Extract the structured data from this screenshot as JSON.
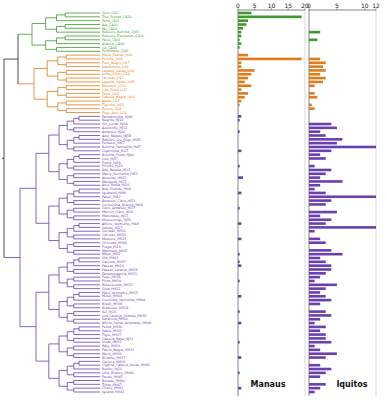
{
  "chart_data": [
    {
      "type": "bar",
      "orientation": "horizontal",
      "title": "Manaus",
      "grid": false,
      "categories": [
        "Djon_CJ01",
        "Tres_Pontas_CA10",
        "Pena_CJ02",
        "Ala_CA03",
        "Mo_CA02",
        "Besouro_Bolinha_CJ05",
        "Besouro_Escondido_CJ04",
        "Pavio_CJ03",
        "Alianca_CA09",
        "Ca_CA05",
        "Pontilhado_CJ06",
        "Mede_Pedras_LI06",
        "Pulinho_LI08",
        "Fuzil_Negro_LI07",
        "Sabiazinho_LI09",
        "Lagarto_Verde_LI10",
        "Linho_Preto_LI14",
        "Lacrado_LI11",
        "Lagarta_Verde_LI05",
        "Meteiner_LI13",
        "Lisa_Preta_LI12",
        "Ferro_LI01",
        "Cabeca_Negra_LI04",
        "Apaia_LI15",
        "Tigrinho_LI02",
        "Escuro_LI03",
        "Fogo_Azul_LI16",
        "Fantasminha_HJ09",
        "Negrito_HJ16",
        "Siri_Lunar_HJ08",
        "Azulzinho_HJ11",
        "Amarelo_HJ06",
        "Azul_Rajado_HJ58",
        "Rabinho_De_Fogo_HI85",
        "Ponteiro_HI67",
        "Bolinha_Vermelha_HI47",
        "Cigarrinha_HI07",
        "Bolinha_Preta_HJ40",
        "Lixo_HJ17",
        "Puma_HI19",
        "Pirulito_HJ21",
        "Asa_Rajada_HI15",
        "Marry_Vermelha_HI52",
        "Atrevido_HH22",
        "Maripoza_HI25",
        "Azul_Ponta_HI26",
        "Asa_Grande_HI69",
        "Iguatemi_HI84",
        "Paten_HI42",
        "Amarelo_Claro_HI53",
        "Cochonilha_Branca_HI64",
        "Carol_Amarelo_HI37",
        "Marron_Claro_HI29",
        "Manchado_HJ15",
        "Mossorongo_HJ56",
        "Afilino_Vermelho_HI48",
        "Indexe_HI17",
        "Cerrado_HH11",
        "Carrudo_HH26",
        "Mossoro_HH25",
        "Chirruda_HH08",
        "Purga_HI10",
        "Manhosa_HH05",
        "Major_HI02",
        "Dia_HH43",
        "Gaivota_HH07",
        "Pasear_HH20",
        "Pasear_Laranja_HH24",
        "Fantasmagoria_HH31",
        "Fogo_HH30",
        "Pinta_HH19",
        "Rinoceronte_HH23",
        "Diva_HH12",
        "Papo_Vermelho_HH15",
        "Mossi_HH04",
        "Cochinha_Vermelha_HH06",
        "Brazil_HH39",
        "Brasileiro_HH14",
        "Sol_HJ26",
        "Ora_Laranja_Grande_HH38",
        "Saracura_HH30",
        "Afilino_Verde_Achatado_HH09",
        "Penta_HH36",
        "Sabia_HH33",
        "Tigre_HH37",
        "Cabeca_Rasa_HJ13",
        "Duda_HH32",
        "Rajo_HH33",
        "Fiacre_Negra_HH23",
        "Mech_HH33",
        "Britarte_HH27",
        "Carioca_HH19",
        "Cigarra_Cabeca_Verde_HH40",
        "Bonito_HJ13",
        "Olho_Branco_HH44",
        "Pavao_HH45",
        "Rosado_HH46",
        "Trilha_HH47",
        "Chaco_HH41",
        "Iguana_HH42"
      ],
      "values": [
        4,
        19,
        3,
        2.5,
        1.5,
        1,
        1,
        0.5,
        1,
        0.5,
        0,
        3,
        19,
        1,
        1,
        5,
        4,
        3,
        2,
        4,
        1,
        3,
        2,
        1,
        0.5,
        0,
        0,
        1,
        0.5,
        0,
        0,
        0.5,
        0,
        0,
        0,
        0,
        1,
        0,
        0,
        0,
        0.5,
        0,
        0,
        1.5,
        0,
        0,
        0,
        1,
        0,
        0,
        0,
        0.5,
        0,
        0,
        0,
        1,
        0,
        0,
        0,
        1,
        0,
        0,
        0,
        0.5,
        0,
        0.5,
        1,
        0,
        0,
        0,
        0.5,
        0,
        0,
        0,
        1,
        0,
        0,
        0,
        0.5,
        0,
        0,
        1,
        0,
        0,
        0,
        0,
        0.5,
        0,
        0,
        0,
        1,
        0,
        0,
        0,
        0.5,
        0,
        0,
        0,
        1,
        0
      ],
      "colors": [
        "#3e9a2c",
        "#3e9a2c",
        "#3e9a2c",
        "#3e9a2c",
        "#3e9a2c",
        "#3e9a2c",
        "#3e9a2c",
        "#3e9a2c",
        "#3e9a2c",
        "#3e9a2c",
        "#3e9a2c",
        "#e07b1a",
        "#e07b1a",
        "#e07b1a",
        "#e07b1a",
        "#e07b1a",
        "#e07b1a",
        "#e07b1a",
        "#e07b1a",
        "#e07b1a",
        "#e07b1a",
        "#e07b1a",
        "#e07b1a",
        "#e07b1a",
        "#e07b1a",
        "#e07b1a",
        "#e07b1a",
        "#6a3fb0",
        "#6a3fb0",
        "#6a3fb0",
        "#6a3fb0",
        "#6a3fb0",
        "#6a3fb0",
        "#6a3fb0",
        "#6a3fb0",
        "#6a3fb0",
        "#6a3fb0",
        "#6a3fb0",
        "#6a3fb0",
        "#6a3fb0",
        "#6a3fb0",
        "#6a3fb0",
        "#6a3fb0",
        "#6a3fb0",
        "#6a3fb0",
        "#6a3fb0",
        "#6a3fb0",
        "#6a3fb0",
        "#6a3fb0",
        "#6a3fb0",
        "#6a3fb0",
        "#6a3fb0",
        "#6a3fb0",
        "#6a3fb0",
        "#6a3fb0",
        "#6a3fb0",
        "#6a3fb0",
        "#6a3fb0",
        "#6a3fb0",
        "#6a3fb0",
        "#6a3fb0",
        "#6a3fb0",
        "#6a3fb0",
        "#6a3fb0",
        "#6a3fb0",
        "#6a3fb0",
        "#6a3fb0",
        "#6a3fb0",
        "#6a3fb0",
        "#6a3fb0",
        "#6a3fb0",
        "#6a3fb0",
        "#6a3fb0",
        "#6a3fb0",
        "#6a3fb0",
        "#6a3fb0",
        "#6a3fb0",
        "#6a3fb0",
        "#6a3fb0",
        "#6a3fb0",
        "#6a3fb0",
        "#6a3fb0",
        "#6a3fb0",
        "#6a3fb0",
        "#6a3fb0",
        "#6a3fb0",
        "#6a3fb0",
        "#6a3fb0",
        "#6a3fb0",
        "#6a3fb0",
        "#6a3fb0",
        "#6a3fb0",
        "#6a3fb0",
        "#6a3fb0",
        "#6a3fb0",
        "#6a3fb0",
        "#6a3fb0",
        "#6a3fb0",
        "#6a3fb0",
        "#6a3fb0"
      ],
      "xlim": [
        0,
        20
      ],
      "xticks": [
        0,
        5,
        10,
        15,
        20
      ]
    },
    {
      "type": "bar",
      "orientation": "horizontal",
      "title": "Iquitos",
      "grid": false,
      "values": [
        0,
        0,
        0,
        0,
        0,
        2,
        0,
        1.5,
        0,
        0,
        0,
        0,
        2,
        3,
        2.5,
        3,
        2,
        3,
        2.5,
        1,
        0,
        1,
        1.5,
        0,
        0.5,
        1,
        0,
        0,
        0,
        4,
        5,
        2,
        3,
        6,
        5,
        12,
        4,
        2,
        3,
        0,
        1,
        4,
        3,
        2,
        6,
        2,
        1,
        3,
        12,
        4,
        3,
        0,
        5,
        2,
        4,
        3,
        12,
        1,
        0,
        2,
        3,
        0,
        4,
        6,
        2,
        3,
        4,
        4,
        3,
        2,
        1,
        5,
        3,
        2,
        3,
        4,
        2,
        0,
        3,
        4,
        2,
        1,
        3,
        2,
        3,
        3,
        4,
        1,
        2,
        5,
        3,
        0,
        2,
        4,
        3,
        2,
        0,
        3,
        2,
        1
      ],
      "colors": [
        "#3e9a2c",
        "#3e9a2c",
        "#3e9a2c",
        "#3e9a2c",
        "#3e9a2c",
        "#3e9a2c",
        "#3e9a2c",
        "#3e9a2c",
        "#3e9a2c",
        "#3e9a2c",
        "#3e9a2c",
        "#e07b1a",
        "#e07b1a",
        "#e07b1a",
        "#e07b1a",
        "#e07b1a",
        "#e07b1a",
        "#e07b1a",
        "#e07b1a",
        "#e07b1a",
        "#e07b1a",
        "#e07b1a",
        "#e07b1a",
        "#e07b1a",
        "#e07b1a",
        "#e07b1a",
        "#e07b1a",
        "#6a3fb0",
        "#6a3fb0",
        "#6a3fb0",
        "#6a3fb0",
        "#6a3fb0",
        "#6a3fb0",
        "#6a3fb0",
        "#6a3fb0",
        "#6a3fb0",
        "#6a3fb0",
        "#6a3fb0",
        "#6a3fb0",
        "#6a3fb0",
        "#6a3fb0",
        "#6a3fb0",
        "#6a3fb0",
        "#6a3fb0",
        "#6a3fb0",
        "#6a3fb0",
        "#6a3fb0",
        "#6a3fb0",
        "#6a3fb0",
        "#6a3fb0",
        "#6a3fb0",
        "#6a3fb0",
        "#6a3fb0",
        "#6a3fb0",
        "#6a3fb0",
        "#6a3fb0",
        "#6a3fb0",
        "#6a3fb0",
        "#6a3fb0",
        "#6a3fb0",
        "#6a3fb0",
        "#6a3fb0",
        "#6a3fb0",
        "#6a3fb0",
        "#6a3fb0",
        "#6a3fb0",
        "#6a3fb0",
        "#6a3fb0",
        "#6a3fb0",
        "#6a3fb0",
        "#6a3fb0",
        "#6a3fb0",
        "#6a3fb0",
        "#6a3fb0",
        "#6a3fb0",
        "#6a3fb0",
        "#6a3fb0",
        "#6a3fb0",
        "#6a3fb0",
        "#6a3fb0",
        "#6a3fb0",
        "#6a3fb0",
        "#6a3fb0",
        "#6a3fb0",
        "#6a3fb0",
        "#6a3fb0",
        "#6a3fb0",
        "#6a3fb0",
        "#6a3fb0",
        "#6a3fb0",
        "#6a3fb0",
        "#6a3fb0",
        "#6a3fb0",
        "#6a3fb0",
        "#6a3fb0",
        "#6a3fb0",
        "#6a3fb0",
        "#6a3fb0",
        "#6a3fb0",
        "#6a3fb0"
      ],
      "xlim": [
        0,
        12
      ],
      "xticks": [
        0,
        5,
        10,
        12
      ]
    }
  ]
}
